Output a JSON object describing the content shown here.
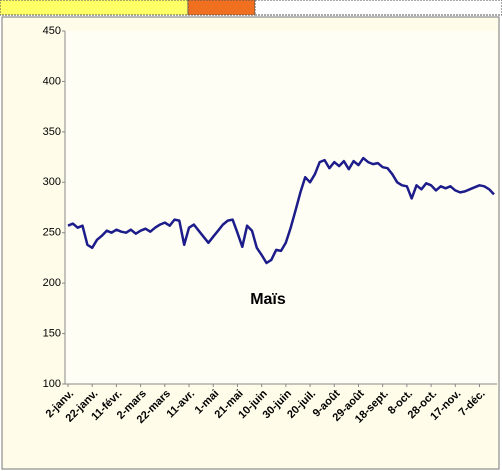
{
  "chart_data": {
    "type": "line",
    "title": "Maïs",
    "categories": [
      "2-janv.",
      null,
      null,
      null,
      null,
      "22-janv.",
      null,
      null,
      null,
      null,
      "11-févr.",
      null,
      null,
      null,
      null,
      "2-mars",
      null,
      null,
      null,
      null,
      "22-mars",
      null,
      null,
      null,
      null,
      "11-avr.",
      null,
      null,
      null,
      null,
      "1-mai",
      null,
      null,
      null,
      null,
      "21-mai",
      null,
      null,
      null,
      null,
      "10-juin",
      null,
      null,
      null,
      null,
      "30-juin",
      null,
      null,
      null,
      null,
      "20-juil.",
      null,
      null,
      null,
      null,
      "9-août",
      null,
      null,
      null,
      null,
      "29-août",
      null,
      null,
      null,
      null,
      "18-sept.",
      null,
      null,
      null,
      null,
      "8-oct.",
      null,
      null,
      null,
      null,
      "28-oct.",
      null,
      null,
      null,
      null,
      "17-nov.",
      null,
      null,
      null,
      null,
      "7-déc.",
      null,
      null,
      null
    ],
    "values": [
      257,
      259,
      255,
      257,
      238,
      235,
      243,
      247,
      252,
      250,
      253,
      251,
      250,
      253,
      249,
      252,
      254,
      251,
      255,
      258,
      260,
      257,
      263,
      262,
      238,
      255,
      258,
      252,
      246,
      240,
      246,
      252,
      258,
      262,
      263,
      250,
      236,
      257,
      252,
      235,
      228,
      220,
      223,
      233,
      232,
      240,
      255,
      272,
      290,
      305,
      300,
      308,
      320,
      322,
      314,
      320,
      316,
      321,
      313,
      321,
      317,
      324,
      320,
      318,
      319,
      315,
      314,
      308,
      300,
      297,
      296,
      284,
      297,
      293,
      299,
      297,
      292,
      296,
      294,
      296,
      292,
      290,
      291,
      293,
      295,
      297,
      296,
      293,
      288
    ],
    "color": "#1c1c8a",
    "ylim": [
      100,
      450
    ],
    "yticks": [
      100,
      150,
      200,
      250,
      300,
      350,
      400,
      450
    ],
    "grid": false
  }
}
